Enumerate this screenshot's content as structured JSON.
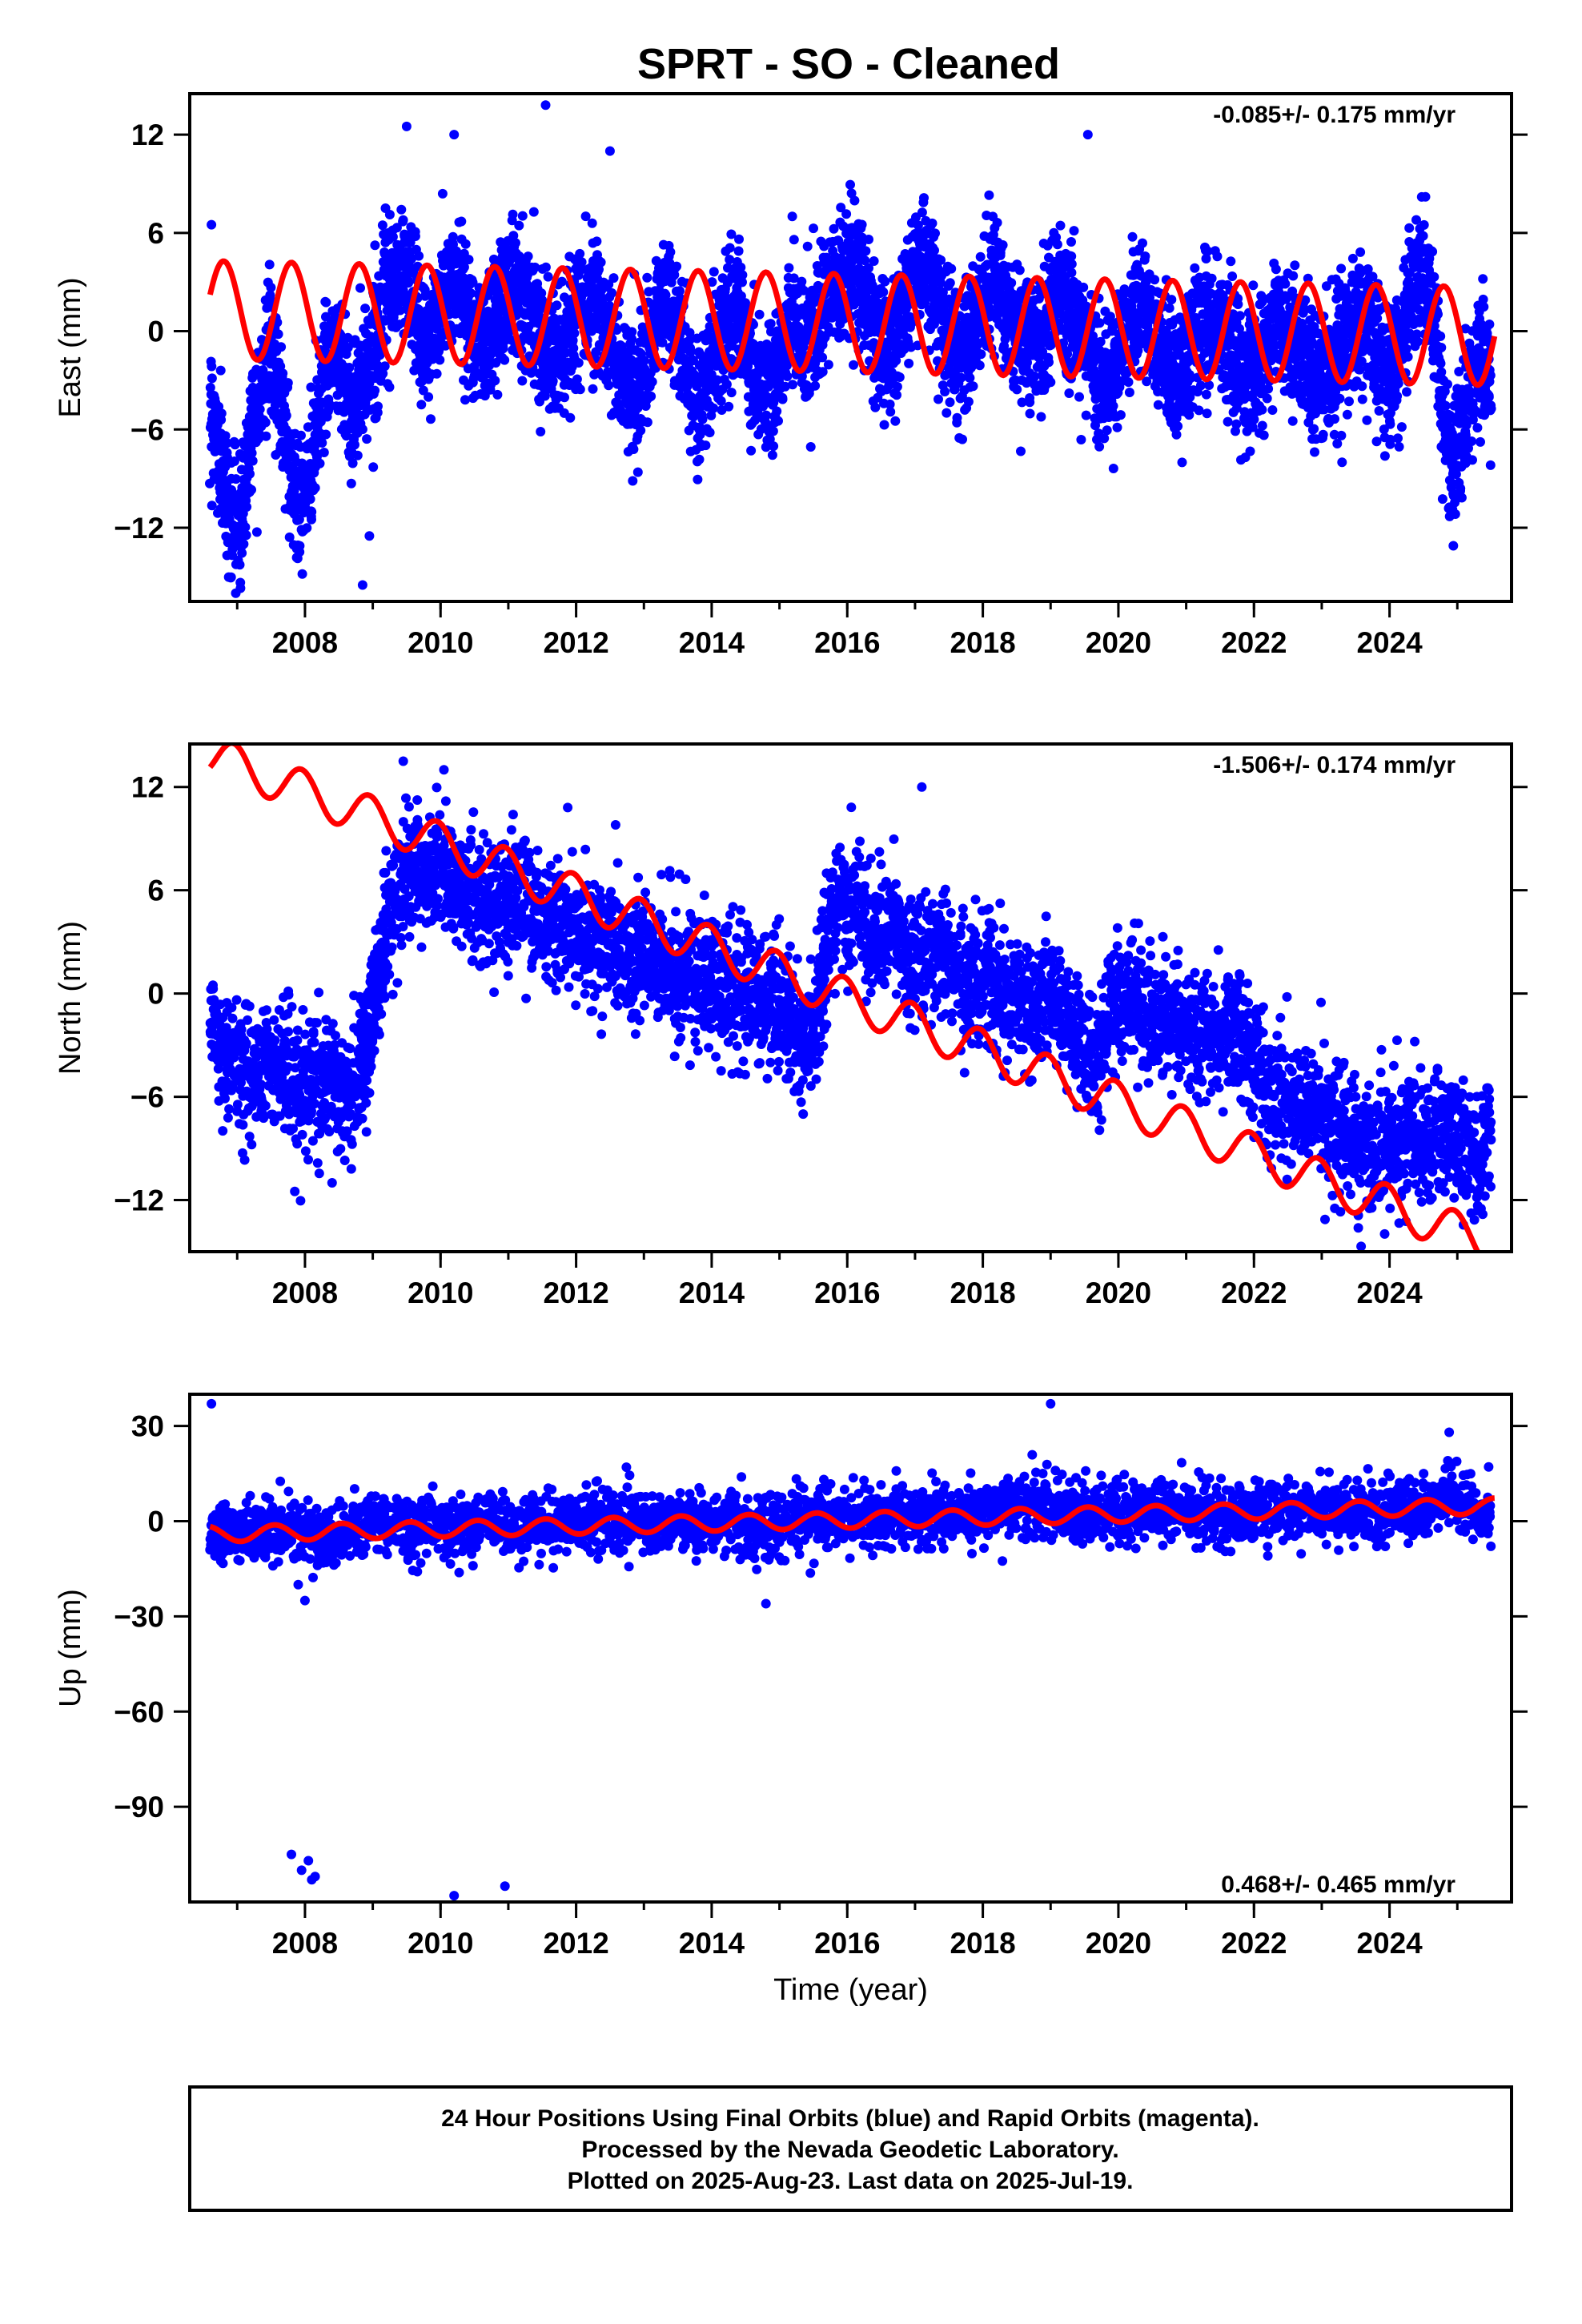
{
  "footer": {
    "line1": "24 Hour Positions Using Final Orbits (blue) and Rapid Orbits (magenta).",
    "line2": "Processed by the Nevada Geodetic Laboratory.",
    "line3": "Plotted on 2025-Aug-23. Last data on 2025-Jul-19."
  },
  "colors": {
    "data": "#0000ff",
    "model": "#ff0000",
    "frame": "#000000"
  },
  "chart_data": [
    {
      "type": "scatter",
      "title": "SPRT  - SO - Cleaned",
      "ylabel": "East (mm)",
      "xlabel": "",
      "rate_label": "-0.085+/- 0.175 mm/yr",
      "xlim": [
        2006.3,
        2025.8
      ],
      "ylim": [
        -16.5,
        14.5
      ],
      "xticks": [
        2008,
        2010,
        2012,
        2014,
        2016,
        2018,
        2020,
        2022,
        2024
      ],
      "xtick_labels": [
        "2008",
        "2010",
        "2012",
        "2014",
        "2016",
        "2018",
        "2020",
        "2022",
        "2024"
      ],
      "yticks": [
        12,
        6,
        0,
        -6,
        -12
      ],
      "ytick_labels": [
        "12",
        "6",
        "0",
        "−6",
        "−12"
      ],
      "grid": false,
      "series": [
        {
          "kind": "points",
          "x": [
            2006.6,
            2006.75,
            2006.9,
            2007.05,
            2007.2,
            2007.35,
            2007.5,
            2007.65,
            2007.8,
            2007.95,
            2008.1,
            2008.25,
            2008.4,
            2008.55,
            2008.7,
            2008.85,
            2009.0,
            2009.15,
            2009.3,
            2009.45,
            2009.6,
            2009.75,
            2009.9,
            2010.05,
            2010.2,
            2010.35,
            2010.5,
            2010.65,
            2010.8,
            2010.95,
            2011.1,
            2011.25,
            2011.4,
            2011.55,
            2011.7,
            2011.85,
            2012.0,
            2012.15,
            2012.3,
            2012.45,
            2012.6,
            2012.75,
            2012.9,
            2013.05,
            2013.2,
            2013.35,
            2013.5,
            2013.65,
            2013.8,
            2013.95,
            2014.1,
            2014.25,
            2014.4,
            2014.55,
            2014.7,
            2014.85,
            2015.0,
            2015.15,
            2015.3,
            2015.45,
            2015.6,
            2015.75,
            2015.9,
            2016.05,
            2016.2,
            2016.35,
            2016.5,
            2016.65,
            2016.8,
            2016.95,
            2017.1,
            2017.25,
            2017.4,
            2017.55,
            2017.7,
            2017.85,
            2018.0,
            2018.15,
            2018.3,
            2018.45,
            2018.6,
            2018.75,
            2018.9,
            2019.05,
            2019.2,
            2019.35,
            2019.5,
            2019.65,
            2019.8,
            2019.95,
            2020.1,
            2020.25,
            2020.4,
            2020.55,
            2020.7,
            2020.85,
            2021.0,
            2021.15,
            2021.3,
            2021.45,
            2021.6,
            2021.75,
            2021.9,
            2022.05,
            2022.2,
            2022.35,
            2022.5,
            2022.65,
            2022.8,
            2022.95,
            2023.1,
            2023.25,
            2023.4,
            2023.55,
            2023.7,
            2023.85,
            2024.0,
            2024.15,
            2024.3,
            2024.45,
            2024.6,
            2024.75,
            2024.9,
            2025.05,
            2025.2,
            2025.35,
            2025.5
          ],
          "y": [
            -4,
            -8,
            -11,
            -12,
            -6,
            -3,
            -1,
            -4,
            -9,
            -11,
            -8,
            -3,
            -1,
            -2,
            -5,
            -3,
            -1,
            1,
            3,
            4,
            2,
            -1,
            0,
            2,
            3,
            2,
            0,
            -1,
            1,
            2,
            3,
            2,
            1,
            -1,
            -2,
            -1,
            1,
            2,
            2,
            0,
            -2,
            -3,
            -4,
            -2,
            1,
            2,
            0,
            -3,
            -4,
            -3,
            -1,
            1,
            1,
            -2,
            -3,
            -4,
            -2,
            1,
            0,
            -1,
            0,
            2,
            3,
            4,
            3,
            1,
            -1,
            -1,
            1,
            3,
            4,
            3,
            1,
            -1,
            -2,
            0,
            2,
            3,
            2,
            0,
            -1,
            -1,
            0,
            2,
            2,
            1,
            -1,
            -2,
            -3,
            -2,
            0,
            1,
            1,
            -1,
            -2,
            -3,
            -2,
            0,
            1,
            0,
            -1,
            -2,
            -3,
            -2,
            -1,
            1,
            0,
            -1,
            -2,
            -3,
            -2,
            -1,
            0,
            1,
            0,
            -2,
            -3,
            -1,
            2,
            4,
            2,
            -3,
            -8,
            -6,
            -3,
            -2,
            -3
          ],
          "spread": 3.2,
          "outliers": [
            [
              2006.62,
              6.5
            ],
            [
              2009.5,
              12.5
            ],
            [
              2010.2,
              12
            ],
            [
              2011.55,
              13.8
            ],
            [
              2012.5,
              11
            ],
            [
              2019.55,
              12
            ],
            [
              2008.85,
              -15.5
            ],
            [
              2008.95,
              -12.5
            ],
            [
              2023.3,
              -8
            ]
          ]
        },
        {
          "kind": "model",
          "offset": 0.5,
          "slope": -0.085,
          "t0": 2016,
          "amplitude": 3.0,
          "amplitude_change": 0.0,
          "phase": 0.45
        }
      ]
    },
    {
      "type": "scatter",
      "title": "",
      "ylabel": "North (mm)",
      "xlabel": "",
      "rate_label": "-1.506+/- 0.174 mm/yr",
      "xlim": [
        2006.3,
        2025.8
      ],
      "ylim": [
        -15,
        14.5
      ],
      "xticks": [
        2008,
        2010,
        2012,
        2014,
        2016,
        2018,
        2020,
        2022,
        2024
      ],
      "xtick_labels": [
        "2008",
        "2010",
        "2012",
        "2014",
        "2016",
        "2018",
        "2020",
        "2022",
        "2024"
      ],
      "yticks": [
        12,
        6,
        0,
        -6,
        -12
      ],
      "ytick_labels": [
        "12",
        "6",
        "0",
        "−6",
        "−12"
      ],
      "grid": false,
      "series": [
        {
          "kind": "points",
          "x": [
            2006.6,
            2006.8,
            2007.0,
            2007.2,
            2007.4,
            2007.6,
            2007.8,
            2008.0,
            2008.2,
            2008.4,
            2008.6,
            2008.8,
            2008.9,
            2009.0,
            2009.1,
            2009.2,
            2009.4,
            2009.6,
            2009.8,
            2010.0,
            2010.2,
            2010.4,
            2010.6,
            2010.8,
            2011.0,
            2011.2,
            2011.4,
            2011.6,
            2011.8,
            2012.0,
            2012.2,
            2012.4,
            2012.6,
            2012.8,
            2013.0,
            2013.2,
            2013.4,
            2013.6,
            2013.8,
            2014.0,
            2014.2,
            2014.4,
            2014.6,
            2014.8,
            2015.0,
            2015.2,
            2015.4,
            2015.6,
            2015.7,
            2015.9,
            2016.1,
            2016.3,
            2016.5,
            2016.7,
            2016.9,
            2017.1,
            2017.3,
            2017.5,
            2017.7,
            2017.9,
            2018.1,
            2018.3,
            2018.5,
            2018.7,
            2018.9,
            2019.1,
            2019.3,
            2019.5,
            2019.7,
            2019.9,
            2020.1,
            2020.3,
            2020.5,
            2020.7,
            2020.9,
            2021.1,
            2021.3,
            2021.5,
            2021.7,
            2021.9,
            2022.1,
            2022.3,
            2022.5,
            2022.7,
            2022.9,
            2023.1,
            2023.3,
            2023.5,
            2023.7,
            2023.9,
            2024.1,
            2024.3,
            2024.5,
            2024.7,
            2024.9,
            2025.1,
            2025.3,
            2025.5
          ],
          "y": [
            -2,
            -3,
            -4,
            -5,
            -4,
            -4,
            -5,
            -6,
            -5,
            -5,
            -6,
            -5,
            -3,
            -1,
            1,
            4,
            6,
            7,
            7,
            7,
            6,
            6,
            5,
            6,
            5,
            6,
            5,
            4,
            4,
            4,
            3,
            3,
            3,
            2,
            2,
            2,
            1,
            1,
            1,
            1,
            0,
            0,
            0,
            -1,
            -1,
            -2,
            -3,
            -1,
            4,
            5,
            5,
            4,
            3,
            4,
            2,
            2,
            3,
            2,
            1,
            1,
            1,
            0,
            0,
            -1,
            0,
            -1,
            -2,
            -3,
            -4,
            0,
            -1,
            -1,
            -2,
            -1,
            -2,
            -2,
            -2,
            -3,
            -2,
            -3,
            -5,
            -6,
            -6,
            -7,
            -7,
            -8,
            -8,
            -9,
            -9,
            -9,
            -8,
            -8,
            -9,
            -8,
            -8,
            -9,
            -10,
            -8
          ],
          "spread": 3.0,
          "outliers": [
            [
              2009.45,
              13.5
            ],
            [
              2010.05,
              13
            ],
            [
              2017.1,
              12
            ],
            [
              2007.85,
              -11.5
            ],
            [
              2008.4,
              -11
            ],
            [
              2015.35,
              -7
            ],
            [
              2025.35,
              -12.5
            ]
          ]
        },
        {
          "kind": "model",
          "offset": -0.3,
          "slope": -1.506,
          "t0": 2016,
          "amplitude": 1.2,
          "amplitude_change": 0.0,
          "phase": 0.3
        }
      ]
    },
    {
      "type": "scatter",
      "title": "",
      "ylabel": "Up (mm)",
      "xlabel": "Time (year)",
      "rate_label": "0.468+/- 0.465 mm/yr",
      "xlim": [
        2006.3,
        2025.8
      ],
      "ylim": [
        -120,
        40
      ],
      "xticks": [
        2008,
        2010,
        2012,
        2014,
        2016,
        2018,
        2020,
        2022,
        2024
      ],
      "xtick_labels": [
        "2008",
        "2010",
        "2012",
        "2014",
        "2016",
        "2018",
        "2020",
        "2022",
        "2024"
      ],
      "yticks": [
        30,
        0,
        -30,
        -60,
        -90
      ],
      "ytick_labels": [
        "30",
        "0",
        "−30",
        "−60",
        "−90"
      ],
      "grid": false,
      "series": [
        {
          "kind": "points",
          "x": [
            2006.6,
            2006.9,
            2007.2,
            2007.5,
            2007.8,
            2008.1,
            2008.4,
            2008.7,
            2009.0,
            2009.3,
            2009.6,
            2009.9,
            2010.2,
            2010.5,
            2010.8,
            2011.1,
            2011.4,
            2011.7,
            2012.0,
            2012.3,
            2012.6,
            2012.9,
            2013.2,
            2013.5,
            2013.8,
            2014.1,
            2014.4,
            2014.7,
            2015.0,
            2015.3,
            2015.6,
            2015.9,
            2016.2,
            2016.5,
            2016.8,
            2017.1,
            2017.4,
            2017.7,
            2018.0,
            2018.3,
            2018.6,
            2018.9,
            2019.2,
            2019.5,
            2019.8,
            2020.1,
            2020.4,
            2020.7,
            2021.0,
            2021.3,
            2021.6,
            2021.9,
            2022.2,
            2022.5,
            2022.8,
            2023.1,
            2023.4,
            2023.7,
            2024.0,
            2024.3,
            2024.6,
            2024.9,
            2025.2,
            2025.5
          ],
          "y": [
            -4,
            -3,
            -3,
            -4,
            -2,
            -5,
            -6,
            -2,
            0,
            -1,
            -2,
            -1,
            -3,
            -2,
            0,
            -2,
            -2,
            -1,
            0,
            -1,
            1,
            0,
            -1,
            -2,
            -1,
            0,
            0,
            -1,
            0,
            1,
            2,
            1,
            0,
            1,
            2,
            2,
            1,
            2,
            3,
            4,
            5,
            6,
            4,
            2,
            3,
            1,
            2,
            3,
            4,
            2,
            1,
            2,
            3,
            4,
            3,
            2,
            3,
            2,
            3,
            4,
            5,
            7,
            4,
            2
          ],
          "spread": 8.0,
          "outliers": [
            [
              2006.62,
              37
            ],
            [
              2019.0,
              37
            ],
            [
              2024.88,
              28
            ],
            [
              2007.8,
              -105
            ],
            [
              2007.95,
              -110
            ],
            [
              2008.05,
              -107
            ],
            [
              2008.1,
              -113
            ],
            [
              2008.15,
              -112
            ],
            [
              2010.2,
              -118
            ],
            [
              2010.95,
              -115
            ],
            [
              2008.0,
              -25
            ],
            [
              2014.8,
              -26
            ],
            [
              2007.9,
              -20
            ]
          ]
        },
        {
          "kind": "model",
          "offset": 0.3,
          "slope": 0.468,
          "t0": 2016,
          "amplitude": 2.5,
          "amplitude_change": 0.0,
          "phase": 0.7
        }
      ]
    }
  ]
}
